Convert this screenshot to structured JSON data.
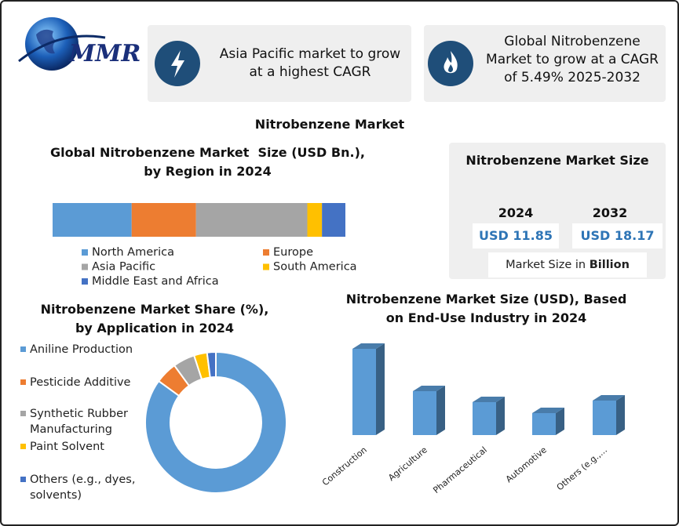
{
  "header": {
    "logo": "MMR"
  },
  "cards": [
    {
      "text": "Asia Pacific market to grow at a highest CAGR"
    },
    {
      "text": "Global Nitrobenzene Market to grow at a CAGR of 5.49% 2025-2032"
    }
  ],
  "title": "Nitrobenzene Market",
  "market_size": {
    "title": "Nitrobenzene Market Size",
    "columns": [
      {
        "year": "2024",
        "value": "USD 11.85"
      },
      {
        "year": "2032",
        "value": "USD 18.17"
      }
    ],
    "footer": "Market Size in",
    "footer_unit": "Billion"
  },
  "chart_data": [
    {
      "type": "stacked_bar",
      "title": "Global Nitrobenzene Market  Size (USD Bn.), by Region in 2024",
      "legend": "bottom",
      "series": [
        {
          "name": "North America",
          "color": "#5b9bd5",
          "values": [
            27
          ]
        },
        {
          "name": "Europe",
          "color": "#ed7d31",
          "values": [
            22
          ]
        },
        {
          "name": "Asia Pacific",
          "color": "#a5a5a5",
          "values": [
            38
          ]
        },
        {
          "name": "South America",
          "color": "#ffc000",
          "values": [
            5
          ]
        },
        {
          "name": "Middle East and Africa",
          "color": "#4472c4",
          "values": [
            8
          ]
        }
      ]
    },
    {
      "type": "donut",
      "title": "Nitrobenzene Market Share (%), by Application in 2024",
      "legend": "left",
      "categories": [
        "Aniline Production",
        "Pesticide Additive",
        "Synthetic Rubber Manufacturing",
        "Paint Solvent",
        "Others (e.g., dyes, solvents)"
      ],
      "values": [
        85,
        5,
        5,
        3,
        2
      ],
      "colors": [
        "#5b9bd5",
        "#ed7d31",
        "#a5a5a5",
        "#ffc000",
        "#4472c4"
      ]
    },
    {
      "type": "bar3d",
      "title": "Nitrobenzene Market Size (USD), Based on End-Use Industry in 2024",
      "categories": [
        "Construction",
        "Agriculture",
        "Pharmaceutical",
        "Automotive",
        "Others (e.g.,..."
      ],
      "values": [
        110,
        56,
        42,
        28,
        44
      ],
      "color": "#5b9bd5"
    }
  ]
}
